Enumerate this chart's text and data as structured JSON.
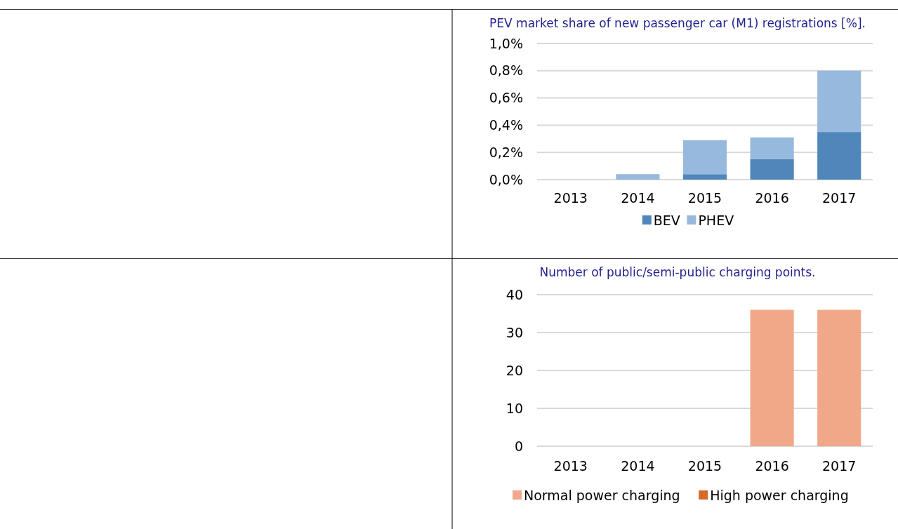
{
  "chart_data": [
    {
      "type": "bar",
      "title": "PEV market share of new passenger car (M1) registrations [%].",
      "categories": [
        "2013",
        "2014",
        "2015",
        "2016",
        "2017"
      ],
      "stacked": true,
      "series": [
        {
          "name": "BEV",
          "color": "#4f87bb",
          "values": [
            0,
            0,
            0.04,
            0.15,
            0.35
          ]
        },
        {
          "name": "PHEV",
          "color": "#98b9de",
          "values": [
            0,
            0.04,
            0.25,
            0.16,
            0.45
          ]
        }
      ],
      "ylim": [
        0,
        1
      ],
      "yticks": [
        {
          "value": 0,
          "label": "0,0%"
        },
        {
          "value": 0.2,
          "label": "0,2%"
        },
        {
          "value": 0.4,
          "label": "0,4%"
        },
        {
          "value": 0.6,
          "label": "0,6%"
        },
        {
          "value": 0.8,
          "label": "0,8%"
        },
        {
          "value": 1,
          "label": "1,0%"
        }
      ],
      "grid": "y",
      "legend": "bottom"
    },
    {
      "type": "bar",
      "title": "Number of public/semi-public charging points.",
      "categories": [
        "2013",
        "2014",
        "2015",
        "2016",
        "2017"
      ],
      "stacked": true,
      "series": [
        {
          "name": "Normal power charging",
          "color": "#f0a889",
          "values": [
            0,
            0,
            0,
            36,
            36
          ]
        },
        {
          "name": "High power charging",
          "color": "#d5692a",
          "values": [
            0,
            0,
            0,
            0,
            0
          ]
        }
      ],
      "ylim": [
        0,
        40
      ],
      "yticks": [
        0,
        10,
        20,
        30,
        40
      ],
      "grid": "y",
      "legend": "bottom"
    }
  ]
}
